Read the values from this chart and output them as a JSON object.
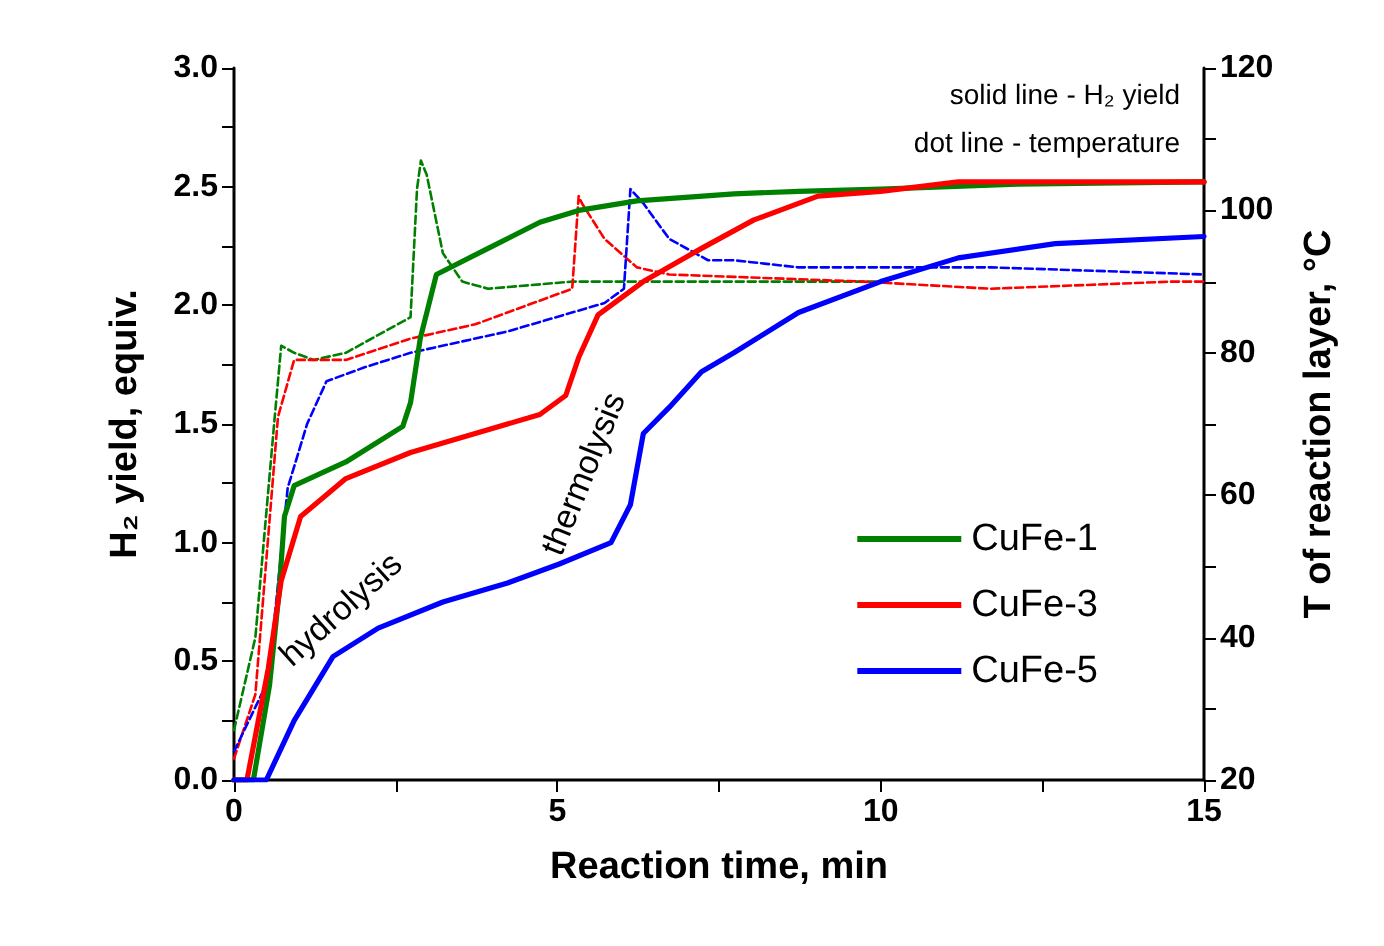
{
  "chart_data": {
    "type": "line",
    "xlabel": "Reaction time, min",
    "ylabel": "H₂ yield, equiv.",
    "y2label": "T of reaction layer, °C",
    "xlim": [
      0,
      15
    ],
    "xticks": [
      0,
      {
        "value": 2.5,
        "label": null
      },
      5,
      {
        "value": 7.5,
        "label": null
      },
      10,
      {
        "value": 12.5,
        "label": null
      },
      15
    ],
    "ylim": [
      0,
      3
    ],
    "yticks": [
      {
        "value": 0,
        "label": "0.0"
      },
      {
        "value": 0.25,
        "label": null
      },
      {
        "value": 0.5,
        "label": "0.5"
      },
      {
        "value": 0.75,
        "label": null
      },
      {
        "value": 1,
        "label": "1.0"
      },
      {
        "value": 1.25,
        "label": null
      },
      {
        "value": 1.5,
        "label": "1.5"
      },
      {
        "value": 1.75,
        "label": null
      },
      {
        "value": 2,
        "label": "2.0"
      },
      {
        "value": 2.25,
        "label": null
      },
      {
        "value": 2.5,
        "label": "2.5"
      },
      {
        "value": 2.75,
        "label": null
      },
      {
        "value": 3,
        "label": "3.0"
      }
    ],
    "y2lim": [
      20,
      120
    ],
    "y2ticks": [
      20,
      {
        "value": 30,
        "label": null
      },
      40,
      {
        "value": 50,
        "label": null
      },
      60,
      {
        "value": 70,
        "label": null
      },
      80,
      {
        "value": 90,
        "label": null
      },
      100,
      {
        "value": 110,
        "label": null
      },
      120
    ],
    "grid": false,
    "legend": "bottom right",
    "marker": "none",
    "annotations": [
      "solid line - H₂ yield",
      "dot line - temperature",
      "hydrolysis",
      "thermolysis"
    ],
    "series": [
      {
        "name": "CuFe-1",
        "color": "#008000",
        "line_style": "solid",
        "x": [
          0,
          0.3,
          0.55,
          0.7,
          0.78,
          0.93,
          1.73,
          2.61,
          2.73,
          2.88,
          3.13,
          3.93,
          4.73,
          5.33,
          6.23,
          7.73,
          8.73,
          10,
          12,
          15
        ],
        "values": [
          0,
          0,
          0.4,
          0.8,
          1.11,
          1.24,
          1.34,
          1.49,
          1.59,
          1.86,
          2.13,
          2.24,
          2.35,
          2.4,
          2.44,
          2.47,
          2.48,
          2.49,
          2.51,
          2.52
        ]
      },
      {
        "name": "CuFe-3",
        "color": "#ff0000",
        "line_style": "solid",
        "x": [
          0,
          0.2,
          0.53,
          0.73,
          1.03,
          1.73,
          2.73,
          3.73,
          4.73,
          5.13,
          5.33,
          5.63,
          6.33,
          7.23,
          8.04,
          9.03,
          10,
          11.2,
          13,
          15
        ],
        "values": [
          0,
          0,
          0.47,
          0.84,
          1.11,
          1.27,
          1.38,
          1.46,
          1.54,
          1.62,
          1.78,
          1.96,
          2.1,
          2.24,
          2.36,
          2.46,
          2.48,
          2.52,
          2.52,
          2.52
        ]
      },
      {
        "name": "CuFe-5",
        "color": "#0000ff",
        "line_style": "solid",
        "x": [
          0,
          0.5,
          0.93,
          1.53,
          2.23,
          3.23,
          4.23,
          5.03,
          5.83,
          6.13,
          6.33,
          6.73,
          7.23,
          7.73,
          8.73,
          10,
          11.2,
          12.7,
          15
        ],
        "values": [
          0,
          0,
          0.25,
          0.52,
          0.64,
          0.75,
          0.83,
          0.91,
          1,
          1.16,
          1.46,
          1.57,
          1.72,
          1.8,
          1.97,
          2.1,
          2.2,
          2.26,
          2.29
        ]
      },
      {
        "color": "#008000",
        "line_style": "dashed",
        "axis": "y2",
        "x": [
          0,
          0.33,
          0.63,
          0.73,
          0.93,
          1.23,
          1.73,
          2.73,
          2.83,
          2.89,
          2.98,
          3.23,
          3.53,
          3.93,
          5.23,
          6.23,
          8,
          10
        ],
        "values": [
          27,
          40,
          71,
          81,
          80,
          79,
          80,
          85,
          103,
          107,
          105,
          94,
          90,
          89,
          90,
          90,
          90,
          90
        ]
      },
      {
        "color": "#ff0000",
        "line_style": "dashed",
        "axis": "y2",
        "x": [
          0,
          0.33,
          0.68,
          0.93,
          1.73,
          2.73,
          3.73,
          5.23,
          5.33,
          5.38,
          5.73,
          6.23,
          6.73,
          9.73,
          11.7,
          14.5,
          15
        ],
        "values": [
          23,
          32,
          71,
          79,
          79,
          82,
          84,
          89,
          102,
          101,
          96,
          92,
          91,
          90,
          89,
          90,
          90
        ]
      },
      {
        "color": "#0000ff",
        "line_style": "dashed",
        "axis": "y2",
        "x": [
          0,
          0.53,
          0.83,
          1.13,
          1.43,
          2.03,
          2.73,
          4.23,
          5.73,
          6.03,
          6.13,
          6.33,
          6.73,
          7.33,
          7.73,
          8.73,
          11.7,
          15
        ],
        "values": [
          24,
          34,
          61,
          70,
          76,
          78,
          80,
          83,
          87,
          89,
          103,
          101,
          96,
          93,
          93,
          92,
          92,
          91
        ]
      }
    ]
  }
}
